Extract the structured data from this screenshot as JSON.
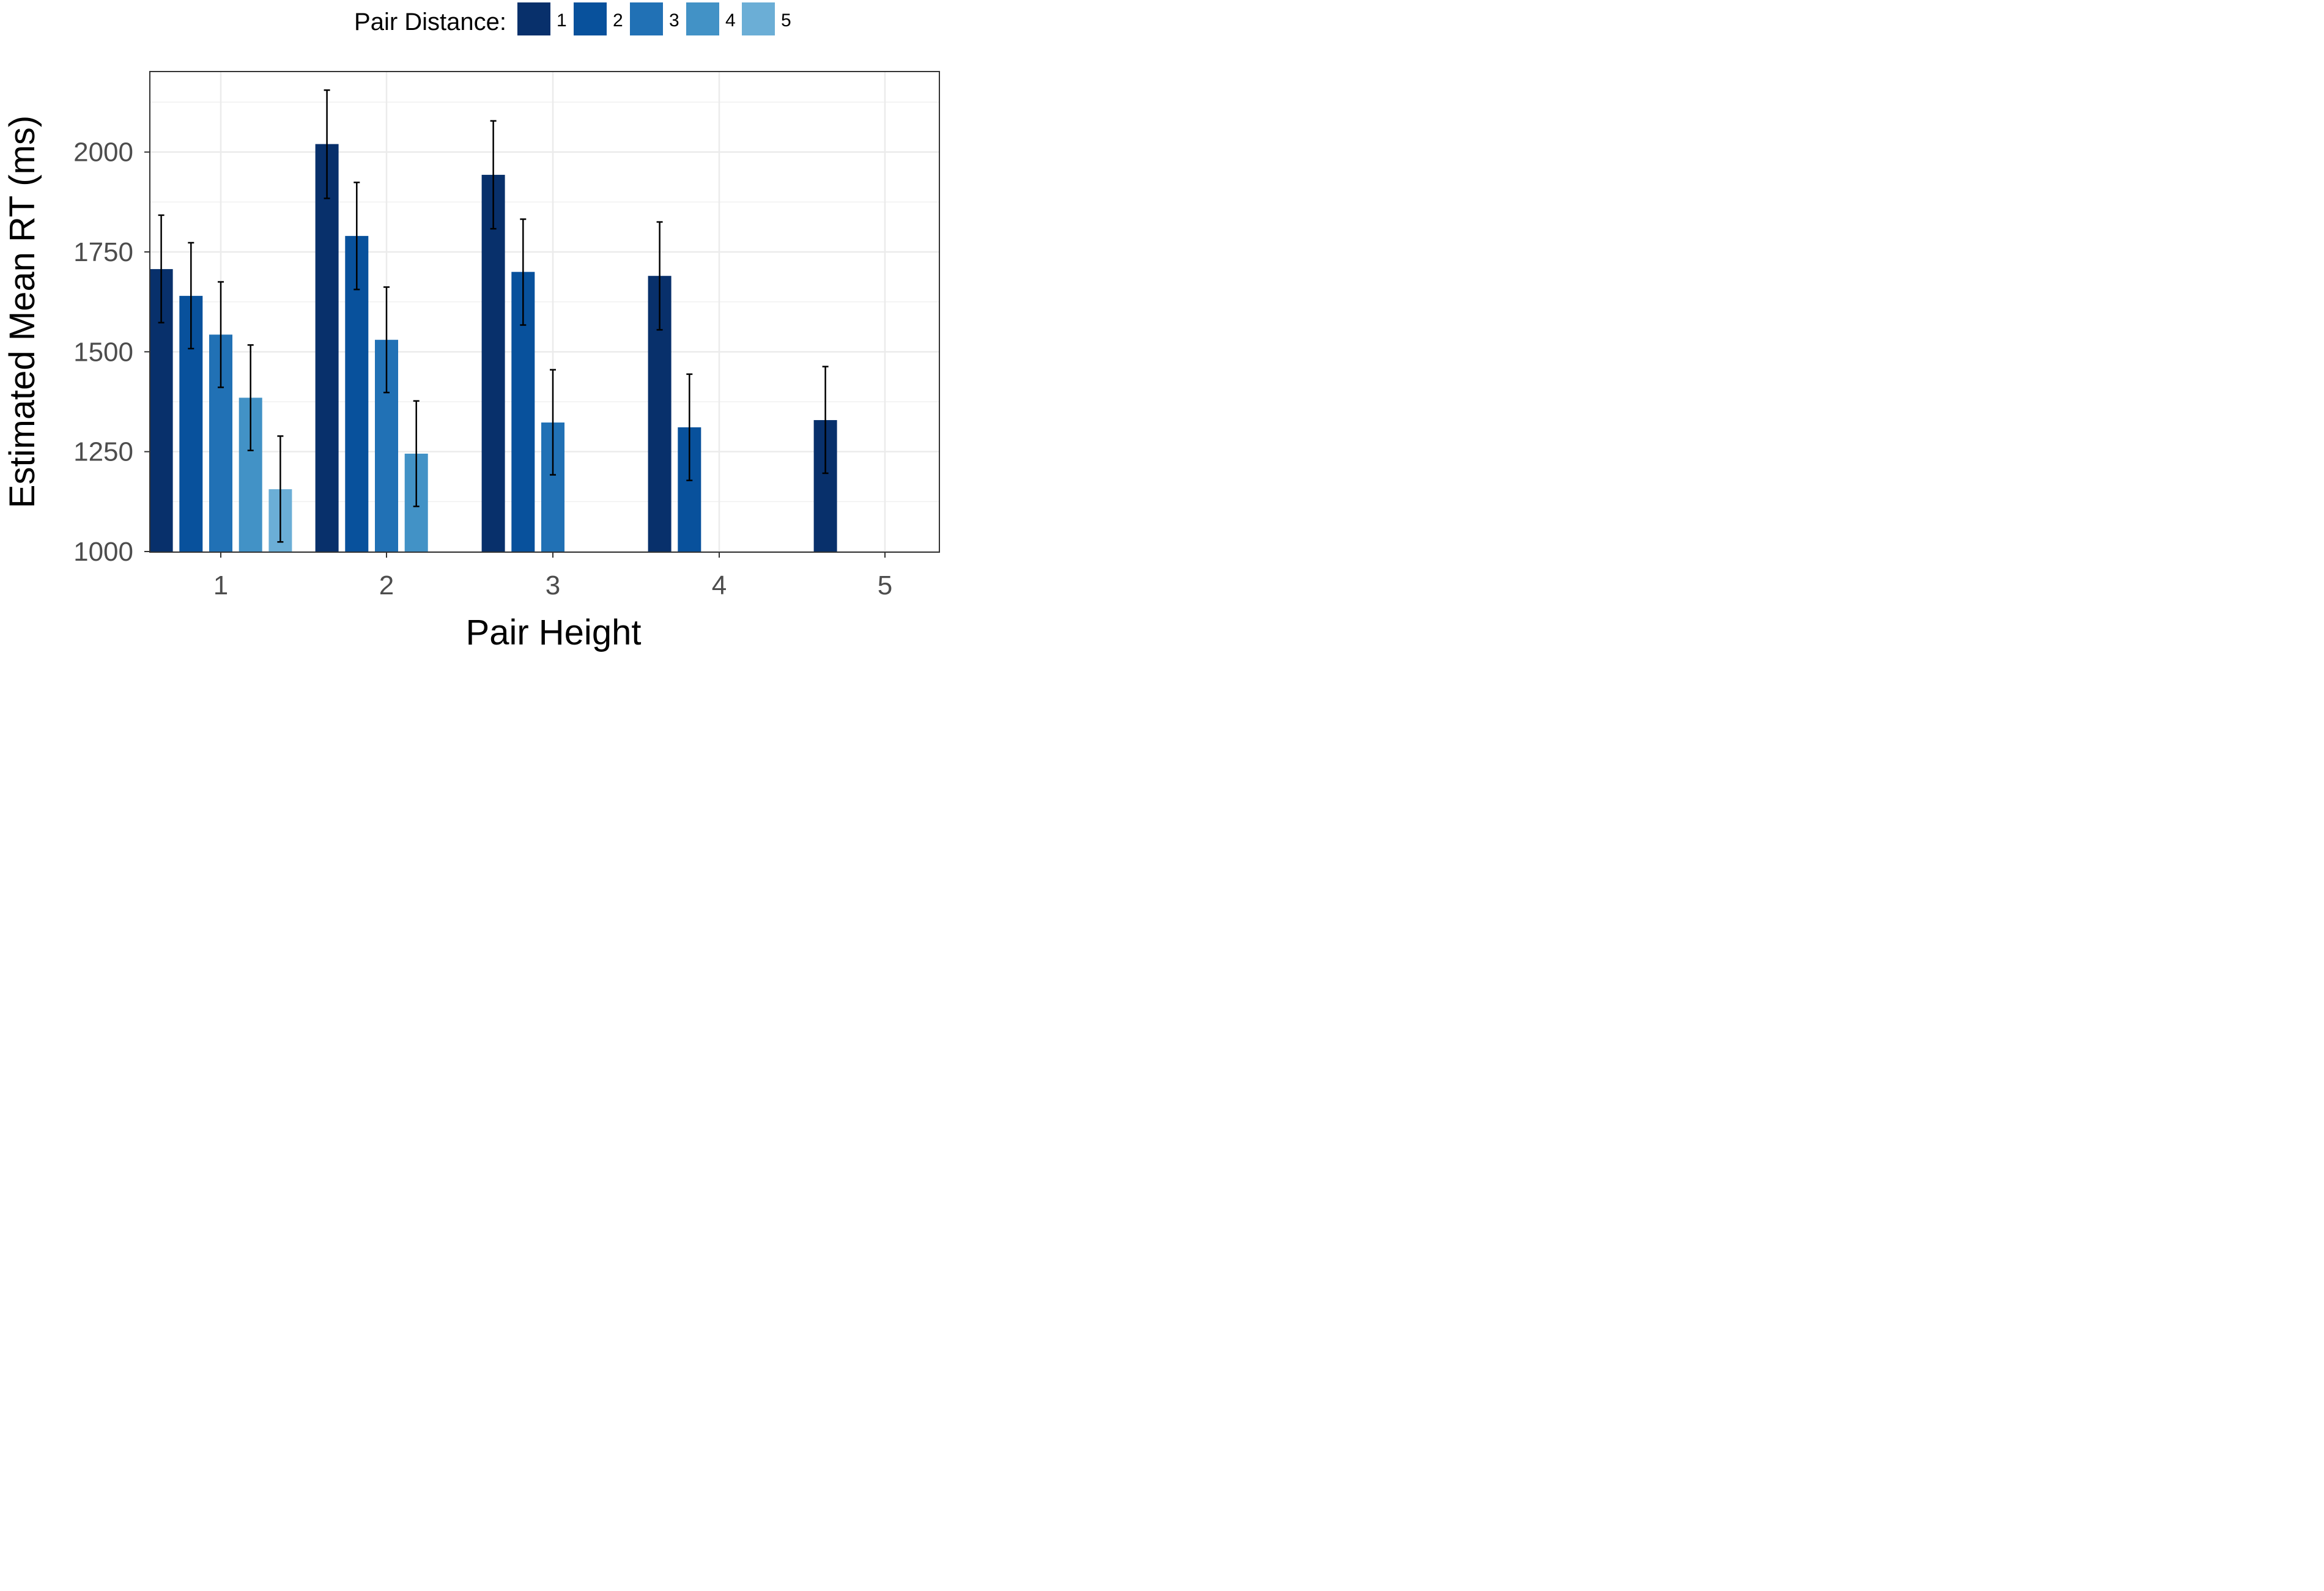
{
  "chart_data": {
    "type": "bar",
    "xlabel": "Pair Height",
    "ylabel": "Estimated Mean RT (ms)",
    "ylim": [
      1000,
      2200
    ],
    "yticks": [
      1000,
      1250,
      1500,
      1750,
      2000
    ],
    "categories": [
      "1",
      "2",
      "3",
      "4",
      "5"
    ],
    "grid": true,
    "legend": {
      "title": "Pair Distance:",
      "position": "top",
      "entries": [
        "1",
        "2",
        "3",
        "4",
        "5"
      ]
    },
    "series": [
      {
        "name": "1",
        "color": "#08306b",
        "values": [
          1707,
          2020,
          1943,
          1690,
          1329
        ],
        "err_low": [
          1573,
          1884,
          1808,
          1555,
          1196
        ],
        "err_high": [
          1842,
          2155,
          2078,
          1825,
          1463
        ]
      },
      {
        "name": "2",
        "color": "#08519c",
        "values": [
          1640,
          1790,
          1700,
          1311,
          null
        ],
        "err_low": [
          1508,
          1656,
          1567,
          1178,
          null
        ],
        "err_high": [
          1773,
          1924,
          1832,
          1444,
          null
        ]
      },
      {
        "name": "3",
        "color": "#2171b5",
        "values": [
          1543,
          1530,
          1323,
          null,
          null
        ],
        "err_low": [
          1411,
          1398,
          1192,
          null,
          null
        ],
        "err_high": [
          1675,
          1662,
          1455,
          null,
          null
        ]
      },
      {
        "name": "4",
        "color": "#4292c6",
        "values": [
          1385,
          1245,
          null,
          null,
          null
        ],
        "err_low": [
          1253,
          1113,
          null,
          null,
          null
        ],
        "err_high": [
          1517,
          1377,
          null,
          null,
          null
        ]
      },
      {
        "name": "5",
        "color": "#6baed6",
        "values": [
          1156,
          null,
          null,
          null,
          null
        ],
        "err_low": [
          1024,
          null,
          null,
          null,
          null
        ],
        "err_high": [
          1289,
          null,
          null,
          null,
          null
        ]
      }
    ]
  }
}
